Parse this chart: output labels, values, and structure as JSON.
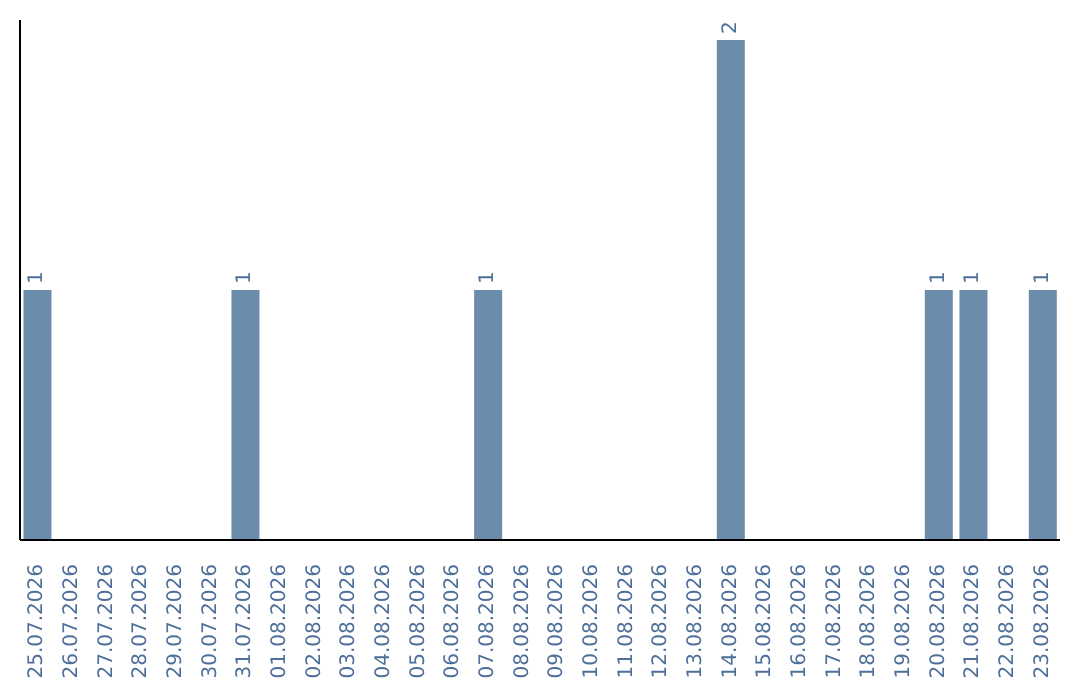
{
  "chart_data": {
    "type": "bar",
    "categories": [
      "25.07.2026",
      "26.07.2026",
      "27.07.2026",
      "28.07.2026",
      "29.07.2026",
      "30.07.2026",
      "31.07.2026",
      "01.08.2026",
      "02.08.2026",
      "03.08.2026",
      "04.08.2026",
      "05.08.2026",
      "06.08.2026",
      "07.08.2026",
      "08.08.2026",
      "09.08.2026",
      "10.08.2026",
      "11.08.2026",
      "12.08.2026",
      "13.08.2026",
      "14.08.2026",
      "15.08.2026",
      "16.08.2026",
      "17.08.2026",
      "18.08.2026",
      "19.08.2026",
      "20.08.2026",
      "21.08.2026",
      "22.08.2026",
      "23.08.2026"
    ],
    "values": [
      1,
      0,
      0,
      0,
      0,
      0,
      1,
      0,
      0,
      0,
      0,
      0,
      0,
      1,
      0,
      0,
      0,
      0,
      0,
      0,
      2,
      0,
      0,
      0,
      0,
      0,
      1,
      1,
      0,
      1
    ],
    "value_labels": [
      "1",
      null,
      null,
      null,
      null,
      null,
      "1",
      null,
      null,
      null,
      null,
      null,
      null,
      "1",
      null,
      null,
      null,
      null,
      null,
      null,
      "2",
      null,
      null,
      null,
      null,
      null,
      "1",
      "1",
      null,
      "1"
    ],
    "color": "#6b8cab",
    "tick_labels": "x",
    "grid": false,
    "legend": false
  }
}
